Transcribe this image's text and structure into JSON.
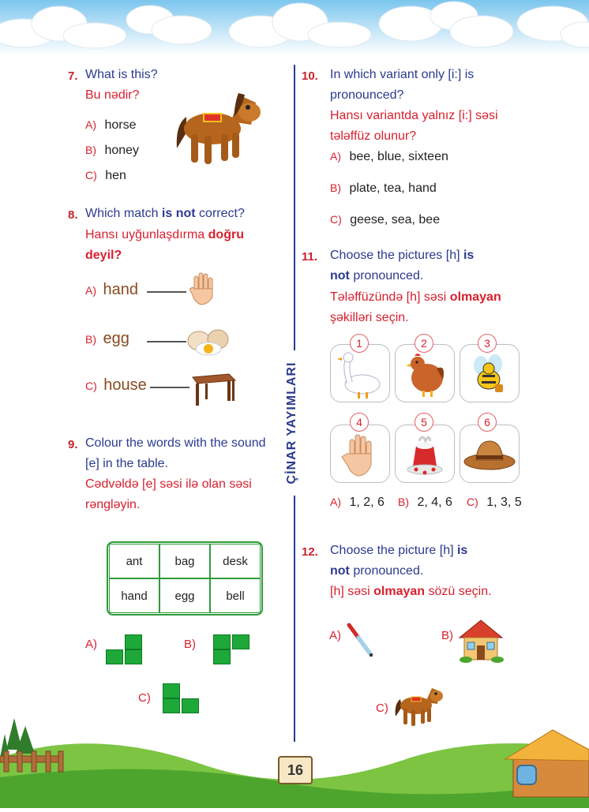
{
  "page_number": "16",
  "side_label": "ÇİNAR YAYIMLARI",
  "q7": {
    "number": "7.",
    "en": "What is this?",
    "az": "Bu nədir?",
    "options": [
      {
        "letter": "A)",
        "text": "horse"
      },
      {
        "letter": "B)",
        "text": "honey"
      },
      {
        "letter": "C)",
        "text": "hen"
      }
    ]
  },
  "q8": {
    "number": "8.",
    "en_pre": "Which match ",
    "en_bold": "is not",
    "en_post": " correct?",
    "az_pre": "Hansı uyğunlaşdırma ",
    "az_bold1": "doğru",
    "az_bold2": "deyil?",
    "options": [
      {
        "letter": "A)",
        "text": "hand"
      },
      {
        "letter": "B)",
        "text": "egg"
      },
      {
        "letter": "C)",
        "text": "house"
      }
    ]
  },
  "q9": {
    "number": "9.",
    "en1": "Colour the words with the sound",
    "en2": "[e] in the table.",
    "az1": "Cədvəldə [e] səsi ilə olan səsi",
    "az2": "rəngləyin.",
    "table": [
      [
        "ant",
        "bag",
        "desk"
      ],
      [
        "hand",
        "egg",
        "bell"
      ]
    ],
    "options": [
      "A)",
      "B)",
      "C)"
    ]
  },
  "q10": {
    "number": "10.",
    "en1": "In which variant only [i:] is",
    "en2": "pronounced?",
    "az1": "Hansı variantda yalnız [i:] səsi",
    "az2": "tələffüz olunur?",
    "options": [
      {
        "letter": "A)",
        "text": "bee, blue, sixteen"
      },
      {
        "letter": "B)",
        "text": "plate, tea, hand"
      },
      {
        "letter": "C)",
        "text": "geese, sea, bee"
      }
    ]
  },
  "q11": {
    "number": "11.",
    "en_pre": "Choose the pictures [h] ",
    "en_bold1": "is",
    "en_bold2": "not",
    "en_post": " pronounced.",
    "az_pre": "Tələffüzündə [h] səsi ",
    "az_bold": "olmayan",
    "az_post": "şəkilləri seçin.",
    "pictures": [
      "1",
      "2",
      "3",
      "4",
      "5",
      "6"
    ],
    "options": [
      {
        "letter": "A)",
        "text": "1, 2, 6"
      },
      {
        "letter": "B)",
        "text": "2, 4, 6"
      },
      {
        "letter": "C)",
        "text": "1, 3, 5"
      }
    ]
  },
  "q12": {
    "number": "12.",
    "en_pre": "Choose the picture [h] ",
    "en_bold1": "is",
    "en_bold2": "not",
    "en_post": " pronounced.",
    "az_pre": "[h] səsi ",
    "az_bold": "olmayan",
    "az_post": " sözü seçin.",
    "options": [
      "A)",
      "B)",
      "C)"
    ]
  }
}
